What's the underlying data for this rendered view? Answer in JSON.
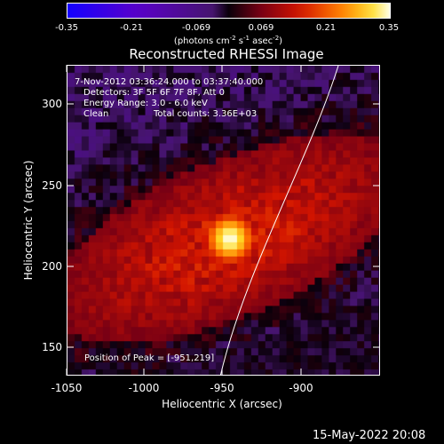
{
  "colorbar": {
    "ticks": [
      "-0.35",
      "-0.21",
      "-0.069",
      "0.069",
      "0.21",
      "0.35"
    ],
    "units": "(photons cm-2 s-1 asec-2)"
  },
  "title": "Reconstructed RHESSI Image",
  "annotations": {
    "time": "7-Nov-2012 03:36:24.000 to 03:37:40.000",
    "detectors": "Detectors: 3F 5F 6F 7F 8F, Att 0",
    "energy": "Energy Range: 3.0 - 6.0 keV",
    "method": "Clean",
    "counts": "Total counts: 3.36E+03",
    "peak": "Position of Peak = [-951,219]"
  },
  "axes": {
    "xlabel": "Heliocentric X (arcsec)",
    "ylabel": "Heliocentric Y (arcsec)",
    "xticks": [
      "-1050",
      "-1000",
      "-950",
      "-900"
    ],
    "yticks": [
      "300",
      "250",
      "200",
      "150"
    ]
  },
  "timestamp": "15-May-2022 20:08",
  "colors": {
    "bg": "#000000",
    "fg": "#ffffff",
    "peak": "#ffffa0",
    "source": "#d02000",
    "background_field": "#50147a"
  }
}
